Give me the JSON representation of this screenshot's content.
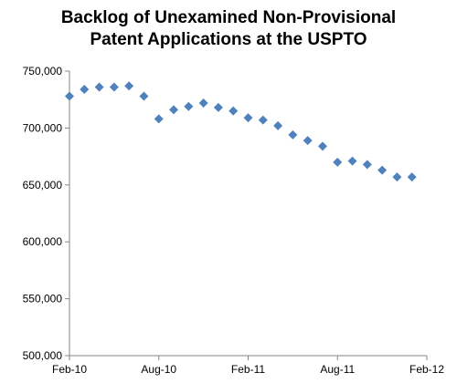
{
  "chart_data": {
    "type": "scatter",
    "title_lines": [
      "Backlog of Unexamined Non-Provisional",
      "Patent Applications at the USPTO"
    ],
    "xlabel": "",
    "ylabel": "",
    "x_tick_labels": [
      "Feb-10",
      "Aug-10",
      "Feb-11",
      "Aug-11",
      "Feb-12"
    ],
    "x_tick_months": [
      0,
      6,
      12,
      18,
      24
    ],
    "xlim": [
      0,
      24
    ],
    "y_tick_labels": [
      "500,000",
      "550,000",
      "600,000",
      "650,000",
      "700,000",
      "750,000"
    ],
    "y_tick_values": [
      500000,
      550000,
      600000,
      650000,
      700000,
      750000
    ],
    "ylim": [
      500000,
      750000
    ],
    "grid": "none",
    "marker_color": "#4F81BD",
    "axis_color": "#868686",
    "series": [
      {
        "x_months": [
          0,
          1,
          2,
          3,
          4,
          5,
          6,
          7,
          8,
          9,
          10,
          11,
          12,
          13,
          14,
          15,
          16,
          17,
          18,
          19,
          20,
          21,
          22,
          23
        ],
        "values": [
          728000,
          734000,
          736000,
          736000,
          737000,
          728000,
          708000,
          716000,
          719000,
          722000,
          718000,
          715000,
          709000,
          707000,
          702000,
          694000,
          689000,
          684000,
          670000,
          671000,
          668000,
          663000,
          657000,
          657000
        ]
      }
    ]
  }
}
